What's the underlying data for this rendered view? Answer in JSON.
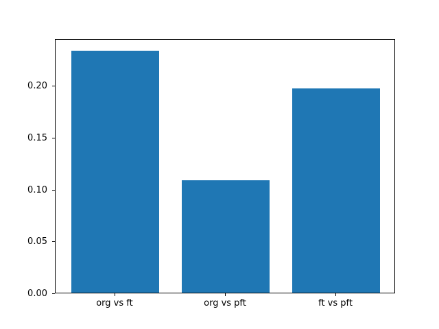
{
  "chart_data": {
    "type": "bar",
    "categories": [
      "org vs ft",
      "org vs pft",
      "ft vs pft"
    ],
    "values": [
      0.233,
      0.108,
      0.197
    ],
    "yticks": [
      0.0,
      0.05,
      0.1,
      0.15,
      0.2
    ],
    "ytick_labels": [
      "0.00",
      "0.05",
      "0.10",
      "0.15",
      "0.20"
    ],
    "ylim": [
      0,
      0.245
    ],
    "bar_width_fraction": 0.8,
    "bar_color": "#1f77b4",
    "axis_color": "#000000",
    "background_color": "#ffffff",
    "grid": false,
    "legend": "none",
    "title": "",
    "xlabel": "",
    "ylabel": ""
  }
}
